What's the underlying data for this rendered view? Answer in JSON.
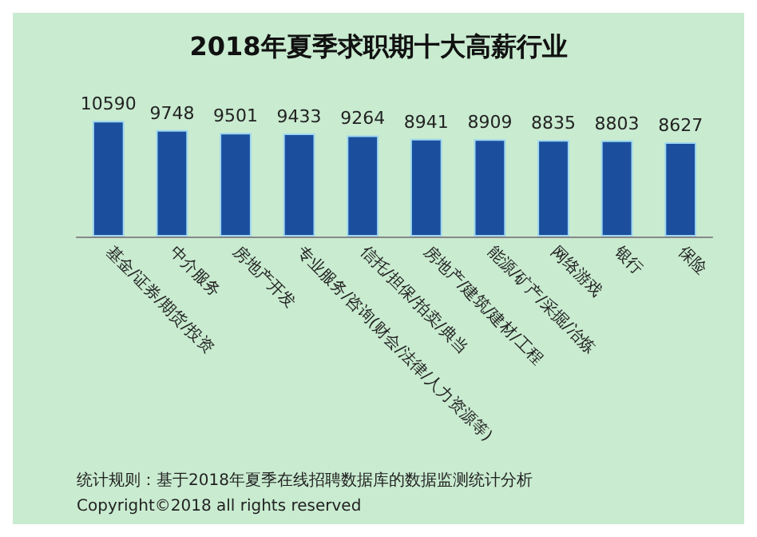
{
  "chart_data": {
    "type": "bar",
    "title": "2018年夏季求职期十大高薪行业",
    "categories": [
      "基金/证券/期货/投资",
      "中介服务",
      "房地产开发",
      "专业服务/咨询(财会/法律/人力资源等)",
      "信托/担保/拍卖/典当",
      "房地产/建筑/建材/工程",
      "能源/矿产/采掘/冶炼",
      "网络游戏",
      "银行",
      "保险"
    ],
    "values": [
      10590,
      9748,
      9501,
      9433,
      9264,
      8941,
      8909,
      8835,
      8803,
      8627
    ],
    "color": "#1b4f9e",
    "data_labels": true,
    "grid": false,
    "tick_labels": "x",
    "annotations": [
      "统计规则：基于2018年夏季在线招聘数据库的数据监测统计分析",
      "Copyright©2018 all rights reserved"
    ]
  }
}
